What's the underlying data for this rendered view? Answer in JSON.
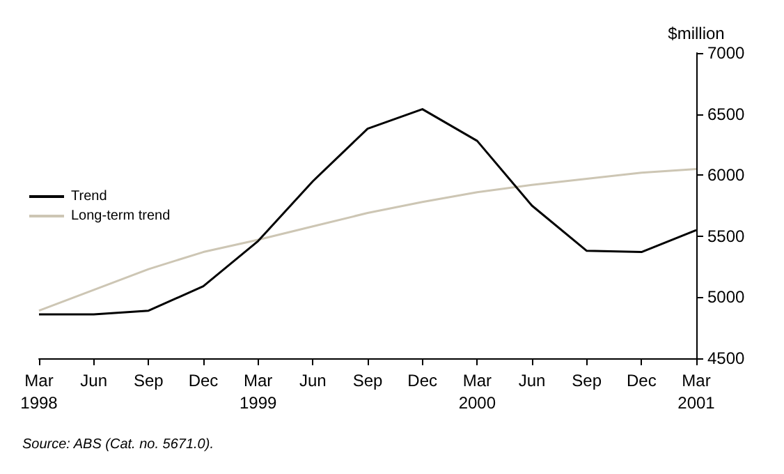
{
  "chart_data": {
    "type": "line",
    "categories": [
      "Mar\n1998",
      "Jun",
      "Sep",
      "Dec",
      "Mar\n1999",
      "Jun",
      "Sep",
      "Dec",
      "Mar\n2000",
      "Jun",
      "Sep",
      "Dec",
      "Mar\n2001"
    ],
    "series": [
      {
        "name": "Trend",
        "color": "#000000",
        "values": [
          4860,
          4860,
          4890,
          5090,
          5460,
          5950,
          6380,
          6540,
          6280,
          5750,
          5380,
          5370,
          5550
        ]
      },
      {
        "name": "Long-term trend",
        "color": "#cdc6b4",
        "values": [
          4890,
          5060,
          5230,
          5370,
          5470,
          5580,
          5690,
          5780,
          5860,
          5920,
          5970,
          6020,
          6050
        ]
      }
    ],
    "ylabel": "$million",
    "ylim": [
      4500,
      7000
    ],
    "yticks": [
      4500,
      5000,
      5500,
      6000,
      6500,
      7000
    ],
    "grid": false,
    "legend": "left",
    "marker": "none",
    "line_style": "solid",
    "annotations": [
      "Source: ABS (Cat. no. 5671.0)."
    ]
  }
}
